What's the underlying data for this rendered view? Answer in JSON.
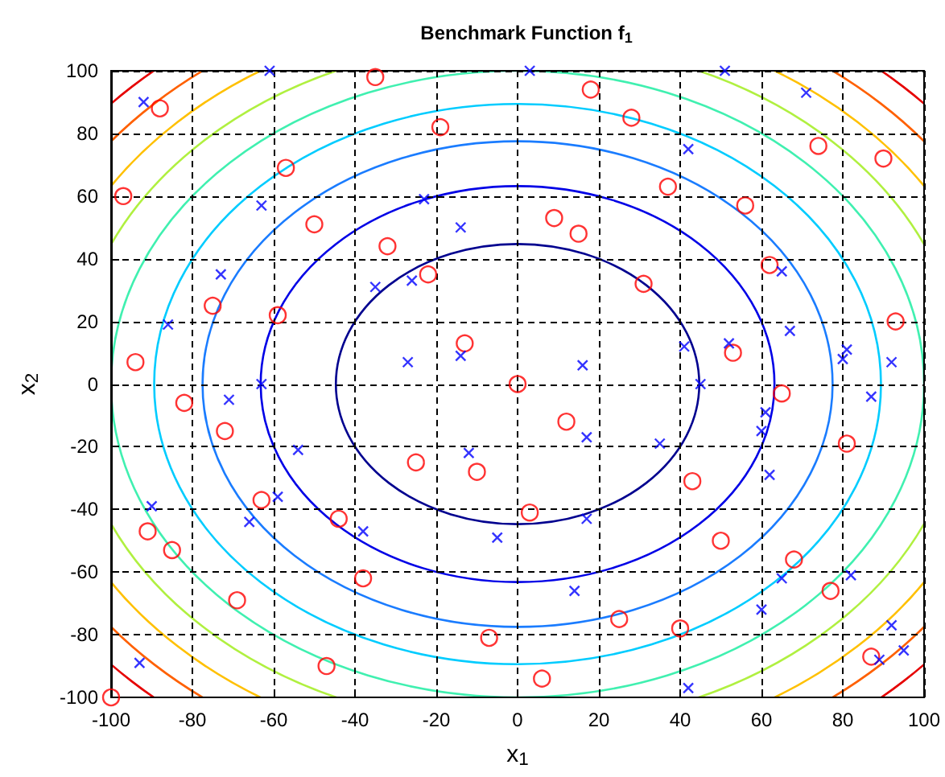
{
  "chart_data": {
    "type": "scatter",
    "title": "Benchmark Function f$_{1}$",
    "xlabel": "x$_{1}$",
    "ylabel": "x$_{2}$",
    "xlim": [
      -100,
      100
    ],
    "ylim": [
      -100,
      100
    ],
    "xticks": [
      -100,
      -80,
      -60,
      -40,
      -20,
      0,
      20,
      40,
      60,
      80,
      100
    ],
    "yticks": [
      -100,
      -80,
      -60,
      -40,
      -20,
      0,
      20,
      40,
      60,
      80,
      100
    ],
    "grid": true,
    "series": [
      {
        "color": "#ff0000",
        "marker": "circle",
        "x": [
          -88,
          -35,
          -19,
          -57,
          -97,
          -50,
          -32,
          -22,
          -75,
          -59,
          -94,
          -13,
          0,
          18,
          28,
          74,
          90,
          37,
          56,
          9,
          15,
          62,
          31,
          93,
          53,
          65,
          12,
          43,
          3,
          81,
          50,
          68,
          77,
          25,
          40,
          87,
          6,
          -82,
          -72,
          -25,
          -10,
          -63,
          -44,
          -91,
          -85,
          -38,
          -69,
          -7,
          -47,
          -100
        ],
        "values": [
          88,
          98,
          82,
          69,
          60,
          51,
          44,
          35,
          25,
          22,
          7,
          13,
          0,
          94,
          85,
          76,
          72,
          63,
          57,
          53,
          48,
          38,
          32,
          20,
          10,
          -3,
          -12,
          -31,
          -41,
          -19,
          -50,
          -56,
          -66,
          -75,
          -78,
          -87,
          -94,
          -6,
          -15,
          -25,
          -28,
          -37,
          -43,
          -47,
          -53,
          -62,
          -69,
          -81,
          -90,
          -100
        ]
      },
      {
        "color": "#0000ff",
        "marker": "cross",
        "x": [
          -92,
          -61,
          -63,
          -23,
          -14,
          -73,
          -86,
          -35,
          -26,
          -27,
          -14,
          -63,
          3,
          51,
          71,
          42,
          65,
          67,
          41,
          52,
          81,
          80,
          92,
          16,
          45,
          61,
          60,
          87,
          17,
          35,
          62,
          17,
          65,
          82,
          14,
          60,
          92,
          95,
          89,
          42,
          -71,
          -54,
          -90,
          -59,
          -66,
          -12,
          -38,
          -5,
          -93
        ],
        "values": [
          90,
          100,
          57,
          59,
          50,
          35,
          19,
          31,
          33,
          7,
          9,
          0,
          100,
          100,
          93,
          75,
          36,
          17,
          12,
          13,
          11,
          8,
          7,
          6,
          0,
          -9,
          -15,
          -4,
          -17,
          -19,
          -29,
          -43,
          -62,
          -61,
          -66,
          -72,
          -77,
          -85,
          -88,
          -97,
          -5,
          -21,
          -39,
          -36,
          -44,
          -22,
          -47,
          -49,
          -89
        ]
      }
    ]
  }
}
